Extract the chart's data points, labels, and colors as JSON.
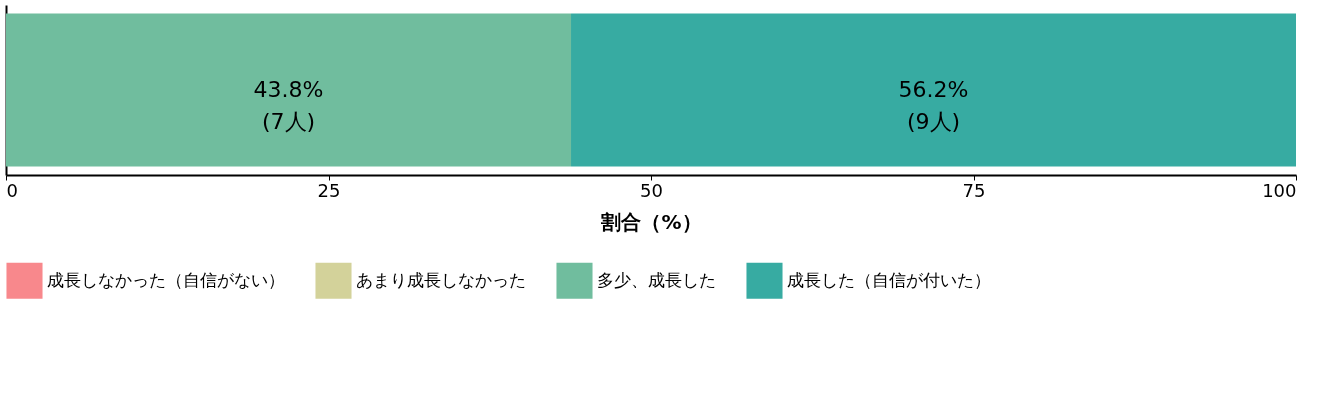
{
  "chart_data": {
    "type": "bar",
    "orientation": "horizontal",
    "stacked": true,
    "categories": [
      null
    ],
    "xlabel": "割合（%）",
    "xlim": [
      0,
      100
    ],
    "xticks": [
      0,
      25,
      50,
      75,
      100
    ],
    "grid": false,
    "legend": "bottom",
    "tick_labels": "x",
    "series": [
      {
        "name": "成長しなかった（自信がない）",
        "color": "#f8888c",
        "values": [
          0
        ],
        "value_labels": [
          null
        ]
      },
      {
        "name": "あまり成長しなかった",
        "color": "#d3d29a",
        "values": [
          0
        ],
        "value_labels": [
          null
        ]
      },
      {
        "name": "多少、成長した",
        "color": "#70bd9e",
        "values": [
          43.8
        ],
        "value_labels": [
          "43.8%\n(7人)"
        ]
      },
      {
        "name": "成長した（自信が付いた）",
        "color": "#37aba2",
        "values": [
          56.2
        ],
        "value_labels": [
          "56.2%\n(9人)"
        ]
      }
    ]
  }
}
